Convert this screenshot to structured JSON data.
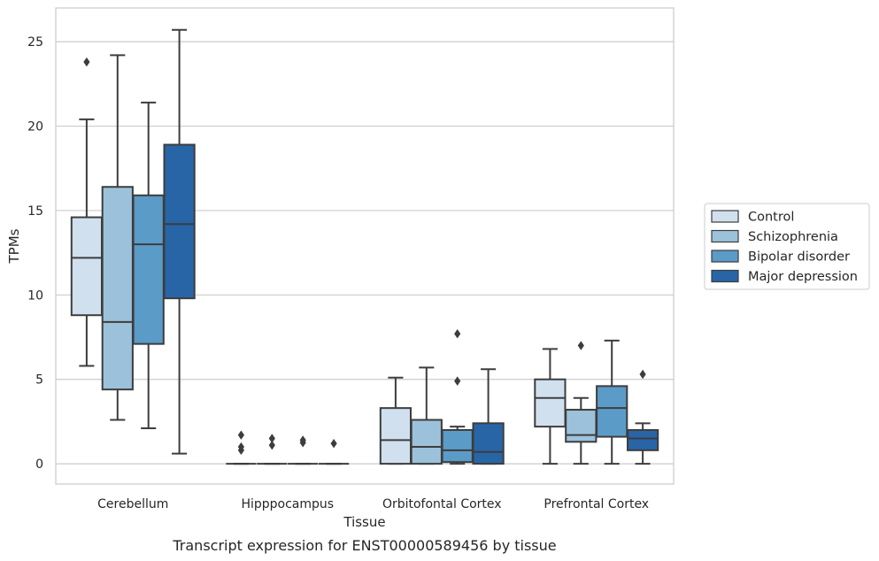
{
  "chart_data": {
    "type": "box",
    "caption": "Transcript expression for ENST00000589456 by tissue",
    "xlabel": "Tissue",
    "ylabel": "TPMs",
    "ylim": [
      -1.2,
      27
    ],
    "yticks": [
      0,
      5,
      10,
      15,
      20,
      25
    ],
    "grid": "horizontal",
    "legend_position": "right",
    "categories": [
      "Cerebellum",
      "Hipppocampus",
      "Orbitofontal Cortex",
      "Prefrontal Cortex"
    ],
    "series": [
      {
        "name": "Control",
        "color": "#d1e0ef",
        "boxes": [
          {
            "whislo": 5.8,
            "q1": 8.8,
            "med": 12.2,
            "q3": 14.6,
            "whishi": 20.4,
            "fliers": [
              23.8
            ]
          },
          {
            "whislo": 0,
            "q1": 0,
            "med": 0,
            "q3": 0,
            "whishi": 0,
            "fliers": [
              0.8,
              1.0,
              1.7
            ]
          },
          {
            "whislo": 0,
            "q1": 0,
            "med": 1.4,
            "q3": 3.3,
            "whishi": 5.1,
            "fliers": []
          },
          {
            "whislo": 0,
            "q1": 2.2,
            "med": 3.9,
            "q3": 5.0,
            "whishi": 6.8,
            "fliers": []
          }
        ]
      },
      {
        "name": "Schizophrenia",
        "color": "#9cc2db",
        "boxes": [
          {
            "whislo": 2.6,
            "q1": 4.4,
            "med": 8.4,
            "q3": 16.4,
            "whishi": 24.2,
            "fliers": []
          },
          {
            "whislo": 0,
            "q1": 0,
            "med": 0,
            "q3": 0,
            "whishi": 0,
            "fliers": [
              1.1,
              1.5
            ]
          },
          {
            "whislo": 0,
            "q1": 0,
            "med": 1.0,
            "q3": 2.6,
            "whishi": 5.7,
            "fliers": []
          },
          {
            "whislo": 0,
            "q1": 1.3,
            "med": 1.7,
            "q3": 3.2,
            "whishi": 3.9,
            "fliers": [
              7.0
            ]
          }
        ]
      },
      {
        "name": "Bipolar disorder",
        "color": "#5b9bc8",
        "boxes": [
          {
            "whislo": 2.1,
            "q1": 7.1,
            "med": 13.0,
            "q3": 15.9,
            "whishi": 21.4,
            "fliers": []
          },
          {
            "whislo": 0,
            "q1": 0,
            "med": 0,
            "q3": 0,
            "whishi": 0,
            "fliers": [
              1.25,
              1.4
            ]
          },
          {
            "whislo": 0,
            "q1": 0.1,
            "med": 0.8,
            "q3": 2.0,
            "whishi": 2.2,
            "fliers": [
              4.9,
              7.7
            ]
          },
          {
            "whislo": 0,
            "q1": 1.6,
            "med": 3.3,
            "q3": 4.6,
            "whishi": 7.3,
            "fliers": []
          }
        ]
      },
      {
        "name": "Major depression",
        "color": "#2765a6",
        "boxes": [
          {
            "whislo": 0.6,
            "q1": 9.8,
            "med": 14.2,
            "q3": 18.9,
            "whishi": 25.7,
            "fliers": []
          },
          {
            "whislo": 0,
            "q1": 0,
            "med": 0,
            "q3": 0,
            "whishi": 0,
            "fliers": [
              1.2
            ]
          },
          {
            "whislo": 0,
            "q1": 0,
            "med": 0.7,
            "q3": 2.4,
            "whishi": 5.6,
            "fliers": []
          },
          {
            "whislo": 0,
            "q1": 0.8,
            "med": 1.5,
            "q3": 2.0,
            "whishi": 2.4,
            "fliers": [
              5.3
            ]
          }
        ]
      }
    ]
  }
}
